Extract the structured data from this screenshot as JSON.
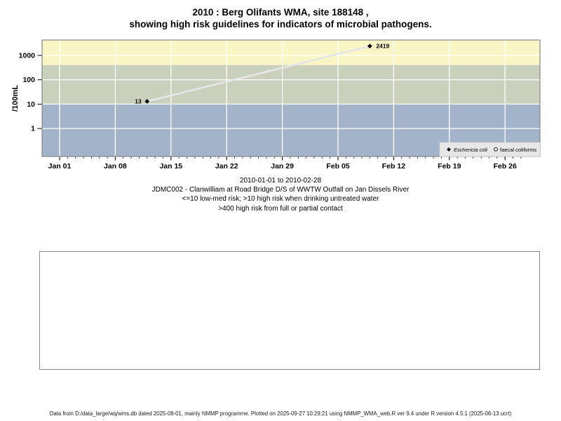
{
  "title": {
    "line1": "2010 : Berg Olifants WMA, site 188148 ,",
    "line2": "showing high risk guidelines for indicators of microbial pathogens."
  },
  "caption": {
    "date_range": "2010-01-01 to 2010-02-28",
    "site": "JDMC002 - Clanwilliam at Road Bridge D/S of WWTW Outfall on Jan Dissels River",
    "guideline1": "<=10 low-med risk; >10 high risk when drinking untreated water",
    "guideline2": ">400 high risk from full or partial contact"
  },
  "footer": {
    "text": "Data from D:/data_large/wq/wms.db dated 2025-08-01, mainly NMMP programme. Plotted on 2025-09-27 10:29:21 using NMMP_WMA_web.R ver 9.4 under R version 4.5.1 (2025-06-13 ucrt)"
  },
  "chart_data": {
    "type": "scatter",
    "y_scale": "log10",
    "ylabel": "/100mL",
    "grid": true,
    "grid_color": "#ffffff",
    "border_color": "#878787",
    "y_axis": {
      "ticks": [
        {
          "label": "1",
          "value": 1
        },
        {
          "label": "10",
          "value": 10
        },
        {
          "label": "100",
          "value": 100
        },
        {
          "label": "1000",
          "value": 1000
        }
      ]
    },
    "x_axis": {
      "ticks": [
        {
          "label": "Jan 01",
          "day": 0
        },
        {
          "label": "Jan 08",
          "day": 7
        },
        {
          "label": "Jan 15",
          "day": 14
        },
        {
          "label": "Jan 22",
          "day": 21
        },
        {
          "label": "Jan 29",
          "day": 28
        },
        {
          "label": "Feb 05",
          "day": 35
        },
        {
          "label": "Feb 12",
          "day": 42
        },
        {
          "label": "Feb 19",
          "day": 49
        },
        {
          "label": "Feb 26",
          "day": 56
        }
      ],
      "minor_tick_day_range": [
        0,
        58
      ]
    },
    "bands": [
      {
        "name": "high-risk-contact",
        "from": 400,
        "to": null,
        "color": "#faf5c4"
      },
      {
        "name": "high-risk-drinking",
        "from": 10,
        "to": 400,
        "color": "#c9d0bc"
      },
      {
        "name": "low-med-risk",
        "from": null,
        "to": 10,
        "color": "#a3b4ca"
      }
    ],
    "series": [
      {
        "name": "Eschericia coli",
        "marker": "filled-diamond",
        "marker_color": "#111111",
        "line_color": "#e6e6e6",
        "points": [
          {
            "date": "2010-01-12",
            "day": 11,
            "value": 13,
            "label": "13",
            "label_side": "left"
          },
          {
            "date": "2010-02-09",
            "day": 39,
            "value": 2419,
            "label": "2419",
            "label_side": "right"
          }
        ]
      },
      {
        "name": "faecal coliforms",
        "marker": "open-circle",
        "marker_color": "#111111",
        "points": []
      }
    ],
    "legend": {
      "bg": "#e7e7e7",
      "position": "bottom-right-inside",
      "items": [
        {
          "marker": "filled-diamond",
          "label": "Eschericia coli",
          "italic": true
        },
        {
          "marker": "open-circle",
          "label": "faecal coliforms",
          "italic": false
        }
      ]
    }
  }
}
